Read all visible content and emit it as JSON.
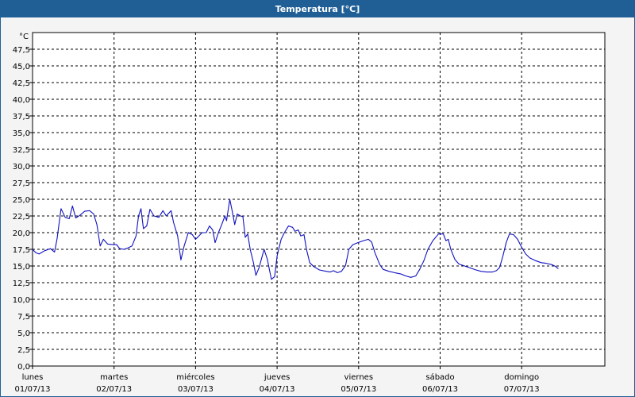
{
  "window": {
    "title": "Temperatura [°C]"
  },
  "colors": {
    "titlebar": "#1f5f96",
    "line": "#1010c0",
    "grid": "#000000"
  },
  "chart_data": {
    "type": "line",
    "title": "Temperatura [°C]",
    "ylabel": "°C",
    "xlabel": "",
    "ylim": [
      0,
      50
    ],
    "grid": true,
    "legend": "none",
    "y_ticks": [
      "0,0",
      "2,5",
      "5,0",
      "7,5",
      "10,0",
      "12,5",
      "15,0",
      "17,5",
      "20,0",
      "22,5",
      "25,0",
      "27,5",
      "30,0",
      "32,5",
      "35,0",
      "37,5",
      "40,0",
      "42,5",
      "45,0",
      "47,5"
    ],
    "x_ticks": [
      {
        "day": "lunes",
        "date": "01/07/13"
      },
      {
        "day": "martes",
        "date": "02/07/13"
      },
      {
        "day": "miércoles",
        "date": "03/07/13"
      },
      {
        "day": "jueves",
        "date": "04/07/13"
      },
      {
        "day": "viernes",
        "date": "05/07/13"
      },
      {
        "day": "sábado",
        "date": "06/07/13"
      },
      {
        "day": "domingo",
        "date": "07/07/13"
      }
    ],
    "x_unit": "days from 01/07/13 00:00",
    "x_range": [
      0,
      7.1
    ],
    "series": [
      {
        "points": [
          [
            0.0,
            17.5
          ],
          [
            0.04,
            17.0
          ],
          [
            0.08,
            16.8
          ],
          [
            0.15,
            17.3
          ],
          [
            0.22,
            17.6
          ],
          [
            0.27,
            17.1
          ],
          [
            0.3,
            19.0
          ],
          [
            0.35,
            23.6
          ],
          [
            0.4,
            22.3
          ],
          [
            0.45,
            22.1
          ],
          [
            0.49,
            24.0
          ],
          [
            0.53,
            22.2
          ],
          [
            0.58,
            22.6
          ],
          [
            0.64,
            23.2
          ],
          [
            0.7,
            23.3
          ],
          [
            0.75,
            22.8
          ],
          [
            0.79,
            21.2
          ],
          [
            0.83,
            18.0
          ],
          [
            0.87,
            19.0
          ],
          [
            0.92,
            18.3
          ],
          [
            0.98,
            18.2
          ],
          [
            1.03,
            18.2
          ],
          [
            1.07,
            17.6
          ],
          [
            1.12,
            17.5
          ],
          [
            1.17,
            17.7
          ],
          [
            1.22,
            18.0
          ],
          [
            1.27,
            19.5
          ],
          [
            1.3,
            22.5
          ],
          [
            1.33,
            23.6
          ],
          [
            1.36,
            20.6
          ],
          [
            1.4,
            21.0
          ],
          [
            1.44,
            23.5
          ],
          [
            1.49,
            22.5
          ],
          [
            1.55,
            22.3
          ],
          [
            1.6,
            23.3
          ],
          [
            1.64,
            22.5
          ],
          [
            1.7,
            23.3
          ],
          [
            1.73,
            21.5
          ],
          [
            1.78,
            19.5
          ],
          [
            1.82,
            15.9
          ],
          [
            1.86,
            18.0
          ],
          [
            1.91,
            20.0
          ],
          [
            1.96,
            19.7
          ],
          [
            2.0,
            19.0
          ],
          [
            2.04,
            19.5
          ],
          [
            2.08,
            20.0
          ],
          [
            2.13,
            20.0
          ],
          [
            2.17,
            21.0
          ],
          [
            2.21,
            20.4
          ],
          [
            2.24,
            18.5
          ],
          [
            2.28,
            20.0
          ],
          [
            2.32,
            21.2
          ],
          [
            2.36,
            22.5
          ],
          [
            2.38,
            21.8
          ],
          [
            2.42,
            25.0
          ],
          [
            2.45,
            23.2
          ],
          [
            2.48,
            21.2
          ],
          [
            2.51,
            22.8
          ],
          [
            2.55,
            22.5
          ],
          [
            2.58,
            22.4
          ],
          [
            2.61,
            19.3
          ],
          [
            2.64,
            19.8
          ],
          [
            2.67,
            17.5
          ],
          [
            2.71,
            15.5
          ],
          [
            2.74,
            13.6
          ],
          [
            2.78,
            14.8
          ],
          [
            2.84,
            17.5
          ],
          [
            2.88,
            16.0
          ],
          [
            2.93,
            13.0
          ],
          [
            2.97,
            13.4
          ],
          [
            3.0,
            16.5
          ],
          [
            3.05,
            19.0
          ],
          [
            3.09,
            20.0
          ],
          [
            3.14,
            21.0
          ],
          [
            3.19,
            20.8
          ],
          [
            3.22,
            20.2
          ],
          [
            3.26,
            20.4
          ],
          [
            3.29,
            19.5
          ],
          [
            3.33,
            19.7
          ],
          [
            3.36,
            17.5
          ],
          [
            3.4,
            15.5
          ],
          [
            3.45,
            14.9
          ],
          [
            3.52,
            14.4
          ],
          [
            3.6,
            14.2
          ],
          [
            3.65,
            14.1
          ],
          [
            3.69,
            14.3
          ],
          [
            3.74,
            14.0
          ],
          [
            3.79,
            14.2
          ],
          [
            3.84,
            15.1
          ],
          [
            3.88,
            17.5
          ],
          [
            3.93,
            18.2
          ],
          [
            3.99,
            18.5
          ],
          [
            4.06,
            18.8
          ],
          [
            4.12,
            19.0
          ],
          [
            4.16,
            18.6
          ],
          [
            4.2,
            17.0
          ],
          [
            4.26,
            15.2
          ],
          [
            4.3,
            14.5
          ],
          [
            4.37,
            14.2
          ],
          [
            4.44,
            14.0
          ],
          [
            4.52,
            13.8
          ],
          [
            4.58,
            13.5
          ],
          [
            4.64,
            13.3
          ],
          [
            4.7,
            13.5
          ],
          [
            4.75,
            14.5
          ],
          [
            4.8,
            15.8
          ],
          [
            4.85,
            17.5
          ],
          [
            4.91,
            18.8
          ],
          [
            4.98,
            19.8
          ],
          [
            5.04,
            19.8
          ],
          [
            5.07,
            18.8
          ],
          [
            5.1,
            19.0
          ],
          [
            5.13,
            17.5
          ],
          [
            5.18,
            16.0
          ],
          [
            5.23,
            15.3
          ],
          [
            5.3,
            15.0
          ],
          [
            5.37,
            14.7
          ],
          [
            5.44,
            14.4
          ],
          [
            5.5,
            14.2
          ],
          [
            5.57,
            14.1
          ],
          [
            5.64,
            14.1
          ],
          [
            5.69,
            14.3
          ],
          [
            5.73,
            14.8
          ],
          [
            5.77,
            16.5
          ],
          [
            5.81,
            18.5
          ],
          [
            5.85,
            19.8
          ],
          [
            5.9,
            19.7
          ],
          [
            5.95,
            19.0
          ],
          [
            6.0,
            17.8
          ],
          [
            6.05,
            16.8
          ],
          [
            6.1,
            16.2
          ],
          [
            6.17,
            15.8
          ],
          [
            6.24,
            15.5
          ],
          [
            6.3,
            15.4
          ],
          [
            6.37,
            15.2
          ],
          [
            6.42,
            14.9
          ],
          [
            6.45,
            14.6
          ]
        ]
      }
    ]
  }
}
